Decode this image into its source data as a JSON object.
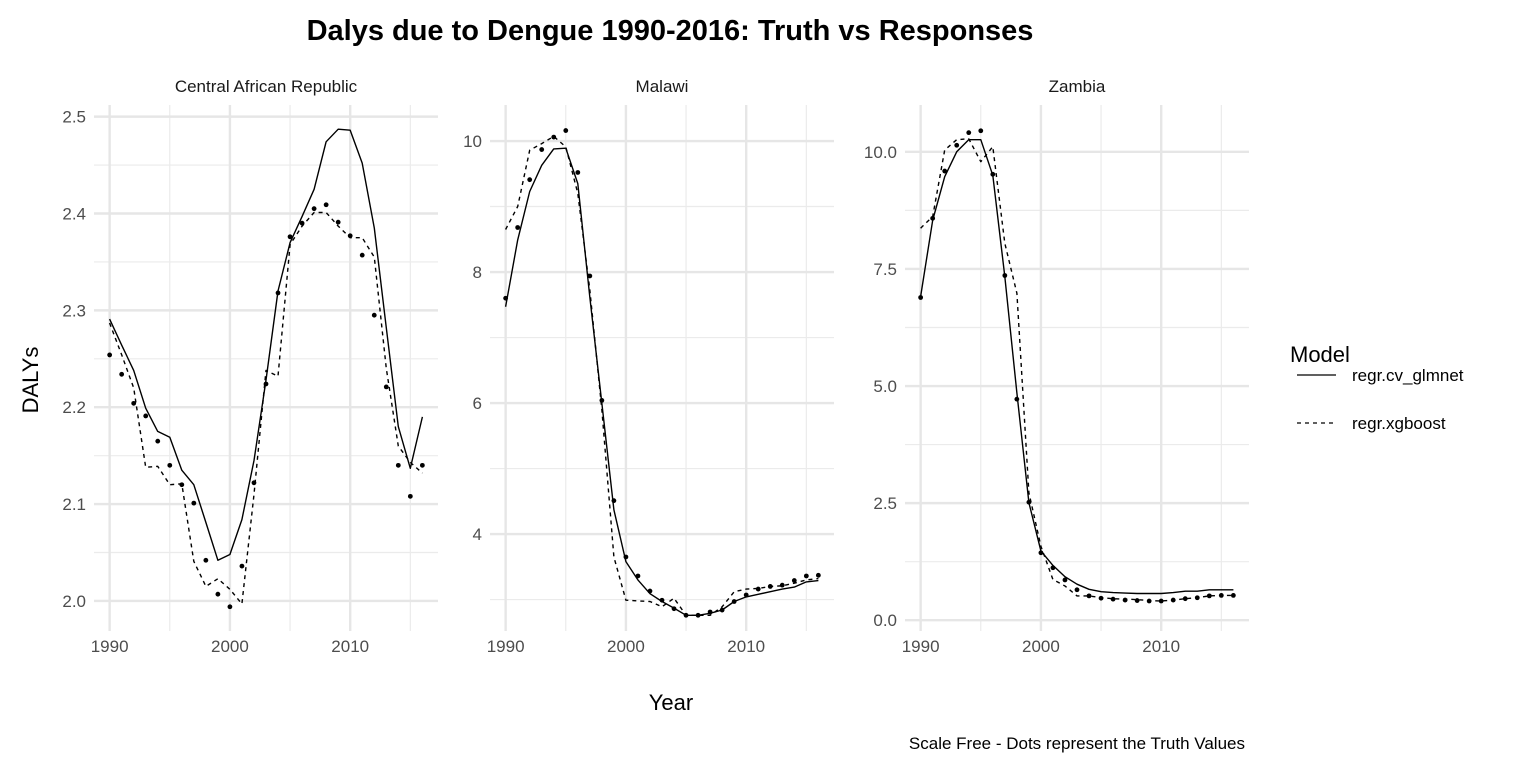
{
  "chart_data": {
    "type": "line",
    "title": "Dalys due to Dengue 1990-2016: Truth vs Responses",
    "xlabel": "Year",
    "ylabel": "DALYs",
    "caption": "Scale Free - Dots represent the Truth Values",
    "legend": {
      "title": "Model",
      "placement": "right",
      "entries": [
        {
          "name": "regr.cv_glmnet",
          "linetype": "solid"
        },
        {
          "name": "regr.xgboost",
          "linetype": "dashed"
        }
      ]
    },
    "grid": true,
    "x": [
      1990,
      1991,
      1992,
      1993,
      1994,
      1995,
      1996,
      1997,
      1998,
      1999,
      2000,
      2001,
      2002,
      2003,
      2004,
      2005,
      2006,
      2007,
      2008,
      2009,
      2010,
      2011,
      2012,
      2013,
      2014,
      2015,
      2016
    ],
    "xlim": [
      1988.7,
      2017.3
    ],
    "xticks": [
      1990,
      2000,
      2010
    ],
    "xminor": [
      1995,
      2005,
      2015
    ],
    "facets": [
      {
        "name": "Central African Republic",
        "ylim": [
          1.969,
          2.512
        ],
        "yticks": [
          "2.0",
          "2.1",
          "2.2",
          "2.3",
          "2.4",
          "2.5"
        ],
        "yminor": [
          2.05,
          2.15,
          2.25,
          2.35,
          2.45
        ],
        "truth": [
          2.254,
          2.234,
          2.204,
          2.191,
          2.165,
          2.14,
          2.12,
          2.101,
          2.042,
          2.007,
          1.994,
          2.036,
          2.122,
          2.224,
          2.318,
          2.376,
          2.39,
          2.405,
          2.409,
          2.391,
          2.377,
          2.357,
          2.295,
          2.221,
          2.14,
          2.108,
          2.14
        ],
        "series": [
          {
            "name": "regr.cv_glmnet",
            "values": [
              2.291,
              2.264,
              2.238,
              2.199,
              2.175,
              2.169,
              2.135,
              2.12,
              2.081,
              2.042,
              2.048,
              2.084,
              2.145,
              2.228,
              2.32,
              2.37,
              2.397,
              2.425,
              2.474,
              2.487,
              2.486,
              2.452,
              2.385,
              2.282,
              2.18,
              2.137,
              2.19
            ]
          },
          {
            "name": "regr.xgboost",
            "values": [
              2.287,
              2.254,
              2.22,
              2.138,
              2.139,
              2.12,
              2.121,
              2.041,
              2.015,
              2.023,
              2.012,
              1.997,
              2.11,
              2.238,
              2.232,
              2.368,
              2.387,
              2.401,
              2.401,
              2.387,
              2.375,
              2.375,
              2.355,
              2.24,
              2.16,
              2.143,
              2.132
            ]
          }
        ]
      },
      {
        "name": "Malawi",
        "ylim": [
          2.52,
          10.55
        ],
        "yticks": [
          "4",
          "6",
          "8",
          "10"
        ],
        "yminor": [
          3,
          5,
          7,
          9
        ],
        "truth": [
          7.6,
          8.68,
          9.41,
          9.87,
          10.06,
          10.16,
          9.52,
          7.94,
          6.04,
          4.51,
          3.65,
          3.36,
          3.13,
          2.99,
          2.86,
          2.76,
          2.76,
          2.81,
          2.84,
          2.97,
          3.07,
          3.16,
          3.2,
          3.22,
          3.29,
          3.36,
          3.37
        ],
        "series": [
          {
            "name": "regr.cv_glmnet",
            "values": [
              7.47,
              8.49,
              9.23,
              9.63,
              9.88,
              9.89,
              9.35,
              7.62,
              5.99,
              4.37,
              3.58,
              3.3,
              3.09,
              2.97,
              2.87,
              2.76,
              2.76,
              2.79,
              2.84,
              2.97,
              3.04,
              3.08,
              3.12,
              3.16,
              3.19,
              3.27,
              3.29
            ]
          },
          {
            "name": "regr.xgboost",
            "values": [
              8.65,
              9.0,
              9.86,
              9.96,
              10.07,
              9.91,
              9.2,
              7.73,
              5.89,
              3.65,
              2.99,
              2.98,
              2.97,
              2.89,
              3.02,
              2.76,
              2.76,
              2.76,
              2.89,
              3.12,
              3.16,
              3.17,
              3.2,
              3.21,
              3.25,
              3.3,
              3.32
            ]
          }
        ]
      },
      {
        "name": "Zambia",
        "ylim": [
          -0.23,
          11.0
        ],
        "yticks": [
          "0.0",
          "2.5",
          "5.0",
          "7.5",
          "10.0"
        ],
        "yminor": [
          1.25,
          3.75,
          6.25,
          8.75
        ],
        "truth": [
          6.89,
          8.58,
          9.59,
          10.14,
          10.41,
          10.45,
          9.52,
          7.36,
          4.72,
          2.52,
          1.44,
          1.12,
          0.86,
          0.65,
          0.52,
          0.47,
          0.45,
          0.43,
          0.42,
          0.41,
          0.41,
          0.43,
          0.46,
          0.48,
          0.52,
          0.53,
          0.53
        ],
        "series": [
          {
            "name": "regr.cv_glmnet",
            "values": [
              6.91,
              8.54,
              9.47,
              10.0,
              10.26,
              10.26,
              9.5,
              7.34,
              4.85,
              2.51,
              1.48,
              1.17,
              0.93,
              0.77,
              0.66,
              0.61,
              0.59,
              0.58,
              0.57,
              0.57,
              0.57,
              0.59,
              0.62,
              0.62,
              0.65,
              0.65,
              0.65
            ]
          },
          {
            "name": "regr.xgboost",
            "values": [
              8.37,
              8.62,
              10.04,
              10.26,
              10.28,
              9.79,
              10.11,
              8.05,
              6.98,
              2.72,
              1.58,
              0.87,
              0.73,
              0.52,
              0.52,
              0.48,
              0.46,
              0.45,
              0.44,
              0.42,
              0.41,
              0.43,
              0.46,
              0.48,
              0.52,
              0.53,
              0.53
            ]
          }
        ]
      }
    ]
  }
}
